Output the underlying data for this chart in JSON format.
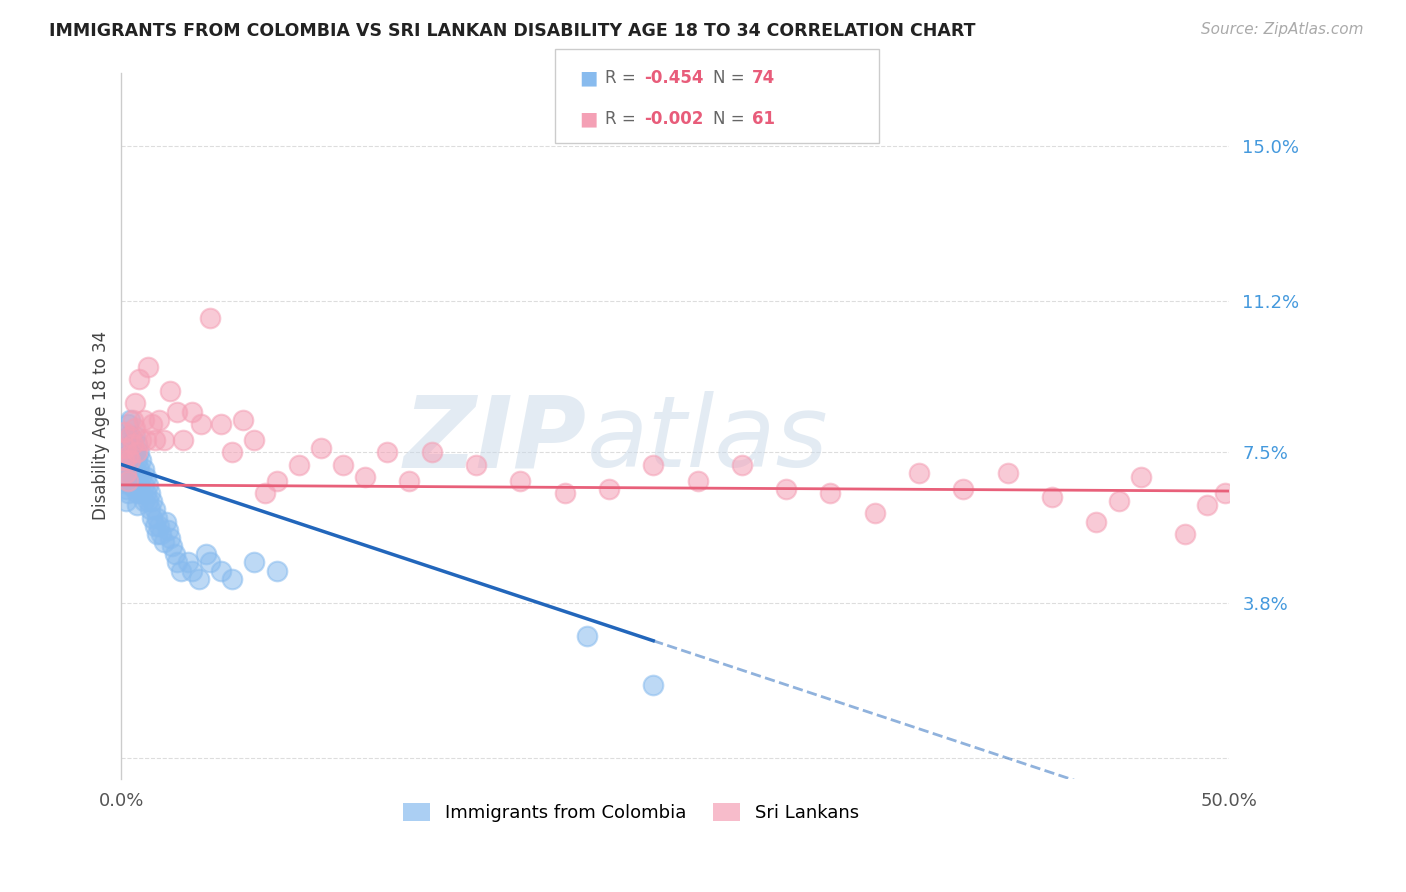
{
  "title": "IMMIGRANTS FROM COLOMBIA VS SRI LANKAN DISABILITY AGE 18 TO 34 CORRELATION CHART",
  "source": "Source: ZipAtlas.com",
  "ylabel": "Disability Age 18 to 34",
  "xlim": [
    0,
    0.5
  ],
  "ylim": [
    -0.005,
    0.168
  ],
  "xtick_positions": [
    0.0,
    0.1,
    0.2,
    0.3,
    0.4,
    0.5
  ],
  "xticklabels": [
    "0.0%",
    "",
    "",
    "",
    "",
    "50.0%"
  ],
  "ytick_positions": [
    0.0,
    0.038,
    0.075,
    0.112,
    0.15
  ],
  "ytick_labels_right": [
    "",
    "3.8%",
    "7.5%",
    "11.2%",
    "15.0%"
  ],
  "colombia_R": -0.454,
  "colombia_N": 74,
  "srilanka_R": -0.002,
  "srilanka_N": 61,
  "colombia_color": "#88bbee",
  "srilanka_color": "#f4a0b5",
  "colombia_line_color": "#2266bb",
  "srilanka_line_color": "#e8607a",
  "legend_colombia": "Immigrants from Colombia",
  "legend_srilanka": "Sri Lankans",
  "colombia_line_intercept": 0.072,
  "colombia_line_slope": -0.18,
  "srilanka_line_intercept": 0.067,
  "srilanka_line_slope": -0.003,
  "colombia_x": [
    0.001,
    0.001,
    0.001,
    0.002,
    0.002,
    0.002,
    0.002,
    0.002,
    0.003,
    0.003,
    0.003,
    0.003,
    0.003,
    0.003,
    0.004,
    0.004,
    0.004,
    0.004,
    0.004,
    0.005,
    0.005,
    0.005,
    0.005,
    0.006,
    0.006,
    0.006,
    0.006,
    0.007,
    0.007,
    0.007,
    0.007,
    0.007,
    0.008,
    0.008,
    0.008,
    0.009,
    0.009,
    0.009,
    0.01,
    0.01,
    0.01,
    0.011,
    0.011,
    0.012,
    0.012,
    0.013,
    0.013,
    0.014,
    0.014,
    0.015,
    0.015,
    0.016,
    0.016,
    0.017,
    0.018,
    0.019,
    0.02,
    0.021,
    0.022,
    0.023,
    0.024,
    0.025,
    0.027,
    0.03,
    0.032,
    0.035,
    0.038,
    0.04,
    0.045,
    0.05,
    0.06,
    0.07,
    0.21,
    0.24
  ],
  "colombia_y": [
    0.078,
    0.072,
    0.068,
    0.076,
    0.073,
    0.07,
    0.066,
    0.063,
    0.082,
    0.079,
    0.074,
    0.071,
    0.068,
    0.065,
    0.083,
    0.079,
    0.075,
    0.071,
    0.067,
    0.078,
    0.075,
    0.071,
    0.067,
    0.079,
    0.075,
    0.071,
    0.067,
    0.077,
    0.073,
    0.069,
    0.065,
    0.062,
    0.075,
    0.071,
    0.067,
    0.073,
    0.069,
    0.065,
    0.071,
    0.067,
    0.063,
    0.069,
    0.065,
    0.067,
    0.063,
    0.065,
    0.061,
    0.063,
    0.059,
    0.061,
    0.057,
    0.059,
    0.055,
    0.057,
    0.055,
    0.053,
    0.058,
    0.056,
    0.054,
    0.052,
    0.05,
    0.048,
    0.046,
    0.048,
    0.046,
    0.044,
    0.05,
    0.048,
    0.046,
    0.044,
    0.048,
    0.046,
    0.03,
    0.018
  ],
  "srilanka_x": [
    0.001,
    0.001,
    0.002,
    0.002,
    0.003,
    0.003,
    0.004,
    0.004,
    0.005,
    0.005,
    0.006,
    0.006,
    0.007,
    0.008,
    0.009,
    0.01,
    0.011,
    0.012,
    0.014,
    0.015,
    0.017,
    0.019,
    0.022,
    0.025,
    0.028,
    0.032,
    0.036,
    0.04,
    0.045,
    0.05,
    0.055,
    0.06,
    0.065,
    0.07,
    0.08,
    0.09,
    0.1,
    0.11,
    0.12,
    0.13,
    0.14,
    0.16,
    0.18,
    0.2,
    0.22,
    0.24,
    0.26,
    0.28,
    0.3,
    0.32,
    0.34,
    0.36,
    0.38,
    0.4,
    0.42,
    0.44,
    0.45,
    0.46,
    0.48,
    0.49,
    0.498
  ],
  "srilanka_y": [
    0.08,
    0.073,
    0.076,
    0.07,
    0.074,
    0.068,
    0.079,
    0.073,
    0.083,
    0.077,
    0.087,
    0.081,
    0.075,
    0.093,
    0.078,
    0.083,
    0.078,
    0.096,
    0.082,
    0.078,
    0.083,
    0.078,
    0.09,
    0.085,
    0.078,
    0.085,
    0.082,
    0.108,
    0.082,
    0.075,
    0.083,
    0.078,
    0.065,
    0.068,
    0.072,
    0.076,
    0.072,
    0.069,
    0.075,
    0.068,
    0.075,
    0.072,
    0.068,
    0.065,
    0.066,
    0.072,
    0.068,
    0.072,
    0.066,
    0.065,
    0.06,
    0.07,
    0.066,
    0.07,
    0.064,
    0.058,
    0.063,
    0.069,
    0.055,
    0.062,
    0.065
  ]
}
